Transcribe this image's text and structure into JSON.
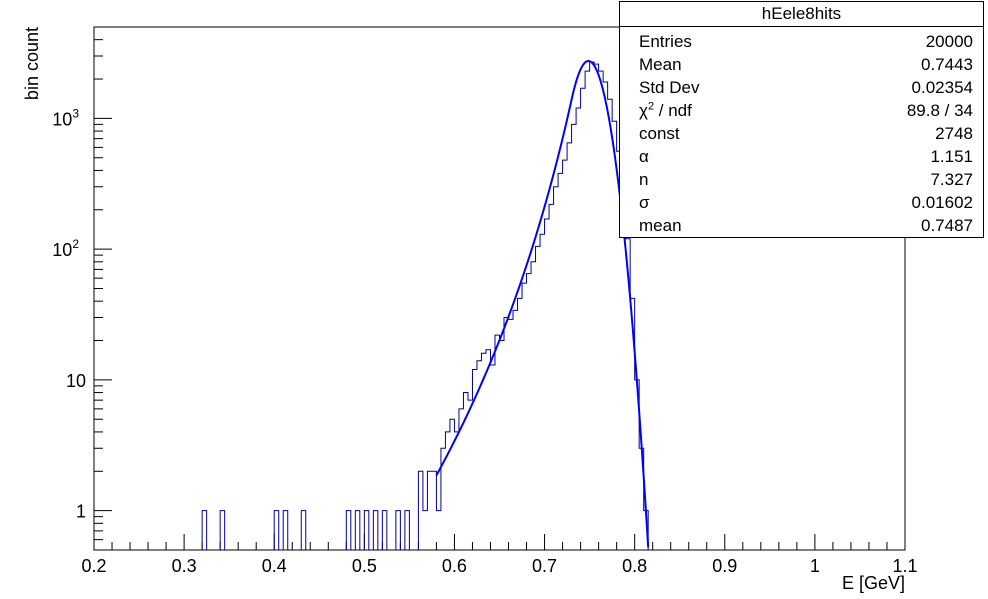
{
  "chart_data": {
    "type": "histogram",
    "xlabel": "E [GeV]",
    "ylabel": "bin count",
    "xlim": [
      0.2,
      1.1
    ],
    "ylim": [
      0.5,
      5000
    ],
    "yscale": "log",
    "x_tick_labels": [
      "0.2",
      "0.3",
      "0.4",
      "0.5",
      "0.6",
      "0.7",
      "0.8",
      "0.9",
      "1",
      "1.1"
    ],
    "y_tick_labels": [
      {
        "value": 1,
        "base": "1",
        "exp": ""
      },
      {
        "value": 10,
        "base": "10",
        "exp": ""
      },
      {
        "value": 100,
        "base": "10",
        "exp": "2"
      },
      {
        "value": 1000,
        "base": "10",
        "exp": "3"
      }
    ],
    "histogram": {
      "name": "hEele8hits",
      "color": "#000099",
      "bin_width": 0.005,
      "bins": [
        [
          0.32,
          1
        ],
        [
          0.34,
          1
        ],
        [
          0.4,
          1
        ],
        [
          0.41,
          1
        ],
        [
          0.43,
          1
        ],
        [
          0.48,
          1
        ],
        [
          0.49,
          1
        ],
        [
          0.5,
          1
        ],
        [
          0.51,
          1
        ],
        [
          0.52,
          1
        ],
        [
          0.535,
          1
        ],
        [
          0.545,
          1
        ],
        [
          0.56,
          2
        ],
        [
          0.565,
          1
        ],
        [
          0.57,
          2
        ],
        [
          0.575,
          2
        ],
        [
          0.58,
          1
        ],
        [
          0.585,
          3
        ],
        [
          0.59,
          4
        ],
        [
          0.595,
          5
        ],
        [
          0.6,
          4
        ],
        [
          0.605,
          6
        ],
        [
          0.61,
          8
        ],
        [
          0.615,
          7
        ],
        [
          0.62,
          12
        ],
        [
          0.625,
          14
        ],
        [
          0.63,
          16
        ],
        [
          0.635,
          17
        ],
        [
          0.64,
          13
        ],
        [
          0.645,
          22
        ],
        [
          0.65,
          20
        ],
        [
          0.655,
          30
        ],
        [
          0.66,
          29
        ],
        [
          0.665,
          34
        ],
        [
          0.67,
          42
        ],
        [
          0.675,
          55
        ],
        [
          0.68,
          65
        ],
        [
          0.685,
          80
        ],
        [
          0.69,
          105
        ],
        [
          0.695,
          130
        ],
        [
          0.7,
          170
        ],
        [
          0.705,
          220
        ],
        [
          0.71,
          300
        ],
        [
          0.715,
          380
        ],
        [
          0.72,
          480
        ],
        [
          0.725,
          650
        ],
        [
          0.73,
          900
        ],
        [
          0.735,
          1200
        ],
        [
          0.74,
          1700
        ],
        [
          0.745,
          2300
        ],
        [
          0.75,
          2700
        ],
        [
          0.755,
          2600
        ],
        [
          0.76,
          2300
        ],
        [
          0.765,
          1900
        ],
        [
          0.77,
          1400
        ],
        [
          0.775,
          950
        ],
        [
          0.78,
          560
        ],
        [
          0.785,
          280
        ],
        [
          0.79,
          120
        ],
        [
          0.795,
          42
        ],
        [
          0.8,
          10
        ],
        [
          0.805,
          3
        ],
        [
          0.81,
          1
        ]
      ]
    },
    "fit": {
      "color": "#0000ff",
      "x_range": [
        0.58,
        0.815
      ],
      "function": "crystal_ball",
      "const": 2748,
      "alpha": 1.151,
      "n": 7.327,
      "sigma": 0.01602,
      "mean": 0.7487
    },
    "stats_box": {
      "title": "hEele8hits",
      "rows": [
        {
          "label": "Entries",
          "value": "20000"
        },
        {
          "label": "Mean",
          "value": "0.7443"
        },
        {
          "label": "Std Dev",
          "value": "0.02354"
        },
        {
          "label": "χ",
          "label_sup": "2",
          "label_rest": " / ndf",
          "value": "89.8 / 34"
        },
        {
          "label": "const",
          "value": "2748"
        },
        {
          "label": "α",
          "value": "1.151"
        },
        {
          "label": "n",
          "value": "7.327"
        },
        {
          "label": "σ",
          "value": "0.01602"
        },
        {
          "label": "mean",
          "value": "0.7487"
        }
      ]
    }
  }
}
